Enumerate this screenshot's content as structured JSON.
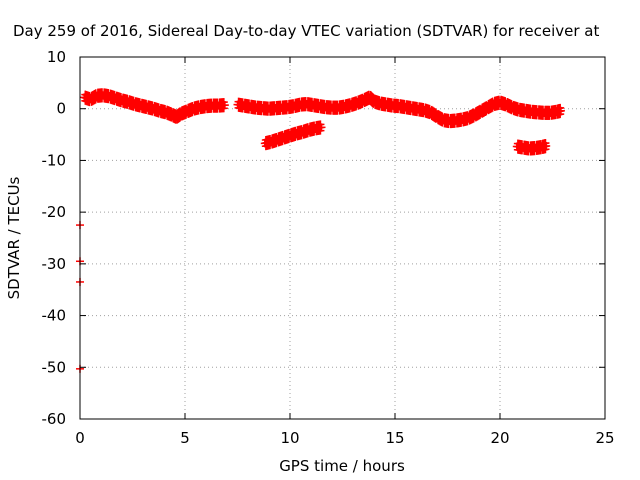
{
  "chart_data": {
    "type": "scatter",
    "title": "Day 259 of 2016, Sidereal Day-to-day VTEC variation (SDTVAR) for receiver at",
    "xlabel": "GPS time / hours",
    "ylabel": "SDTVAR / TECUs",
    "xlim": [
      0,
      25
    ],
    "ylim": [
      -60,
      10
    ],
    "xticks": [
      0,
      5,
      10,
      15,
      20,
      25
    ],
    "yticks": [
      10,
      0,
      -10,
      -20,
      -30,
      -40,
      -50,
      -60
    ],
    "grid": true,
    "marker": "plus",
    "color": "#ff0000",
    "series": [
      {
        "values": [
          [
            0.2,
            2.2
          ],
          [
            0.5,
            1.8
          ],
          [
            0.8,
            2.5
          ],
          [
            1.1,
            2.6
          ],
          [
            1.4,
            2.4
          ],
          [
            1.7,
            2.0
          ],
          [
            2.0,
            1.6
          ],
          [
            2.3,
            1.3
          ],
          [
            2.6,
            0.9
          ],
          [
            2.9,
            0.6
          ],
          [
            3.2,
            0.3
          ],
          [
            3.5,
            0.0
          ],
          [
            3.8,
            -0.4
          ],
          [
            4.1,
            -0.7
          ],
          [
            4.4,
            -1.2
          ],
          [
            4.6,
            -1.6
          ],
          [
            4.8,
            -1.0
          ],
          [
            5.1,
            -0.5
          ],
          [
            5.4,
            0.0
          ],
          [
            5.7,
            0.3
          ],
          [
            6.0,
            0.5
          ],
          [
            6.3,
            0.6
          ],
          [
            6.6,
            0.6
          ],
          [
            6.9,
            0.7
          ],
          [
            7.5,
            0.8
          ],
          [
            7.8,
            0.6
          ],
          [
            8.1,
            0.4
          ],
          [
            8.4,
            0.2
          ],
          [
            8.7,
            0.1
          ],
          [
            9.0,
            0.0
          ],
          [
            9.3,
            0.1
          ],
          [
            9.6,
            0.2
          ],
          [
            9.9,
            0.3
          ],
          [
            10.2,
            0.5
          ],
          [
            10.5,
            0.8
          ],
          [
            10.8,
            0.9
          ],
          [
            11.1,
            0.7
          ],
          [
            11.4,
            0.5
          ],
          [
            11.7,
            0.3
          ],
          [
            12.0,
            0.2
          ],
          [
            12.3,
            0.2
          ],
          [
            12.6,
            0.4
          ],
          [
            12.9,
            0.7
          ],
          [
            13.2,
            1.1
          ],
          [
            13.5,
            1.6
          ],
          [
            13.8,
            2.2
          ],
          [
            14.0,
            1.4
          ],
          [
            14.3,
            1.0
          ],
          [
            14.6,
            0.8
          ],
          [
            14.9,
            0.6
          ],
          [
            15.2,
            0.5
          ],
          [
            15.5,
            0.3
          ],
          [
            15.8,
            0.1
          ],
          [
            16.1,
            -0.1
          ],
          [
            16.4,
            -0.3
          ],
          [
            16.7,
            -0.7
          ],
          [
            17.0,
            -1.5
          ],
          [
            17.3,
            -2.2
          ],
          [
            17.6,
            -2.4
          ],
          [
            17.9,
            -2.3
          ],
          [
            18.2,
            -2.1
          ],
          [
            18.5,
            -1.8
          ],
          [
            18.8,
            -1.2
          ],
          [
            19.1,
            -0.5
          ],
          [
            19.4,
            0.2
          ],
          [
            19.7,
            0.9
          ],
          [
            20.0,
            1.2
          ],
          [
            20.3,
            0.8
          ],
          [
            20.6,
            0.2
          ],
          [
            20.9,
            -0.2
          ],
          [
            21.2,
            -0.4
          ],
          [
            21.5,
            -0.6
          ],
          [
            21.8,
            -0.7
          ],
          [
            22.1,
            -0.8
          ],
          [
            22.4,
            -0.8
          ],
          [
            22.7,
            -0.6
          ],
          [
            22.9,
            -0.4
          ]
        ]
      },
      {
        "values": [
          [
            8.8,
            -6.7
          ],
          [
            9.1,
            -6.4
          ],
          [
            9.4,
            -6.0
          ],
          [
            9.7,
            -5.6
          ],
          [
            10.0,
            -5.2
          ],
          [
            10.3,
            -4.8
          ],
          [
            10.6,
            -4.5
          ],
          [
            10.9,
            -4.1
          ],
          [
            11.2,
            -3.8
          ],
          [
            11.5,
            -3.6
          ]
        ]
      },
      {
        "values": [
          [
            20.8,
            -7.3
          ],
          [
            21.1,
            -7.5
          ],
          [
            21.4,
            -7.7
          ],
          [
            21.7,
            -7.6
          ],
          [
            22.0,
            -7.4
          ],
          [
            22.2,
            -7.2
          ]
        ]
      },
      {
        "values": [
          [
            0.0,
            -22.5
          ],
          [
            0.0,
            -29.5
          ],
          [
            0.0,
            -33.5
          ],
          [
            0.0,
            -50.3
          ]
        ]
      }
    ]
  }
}
